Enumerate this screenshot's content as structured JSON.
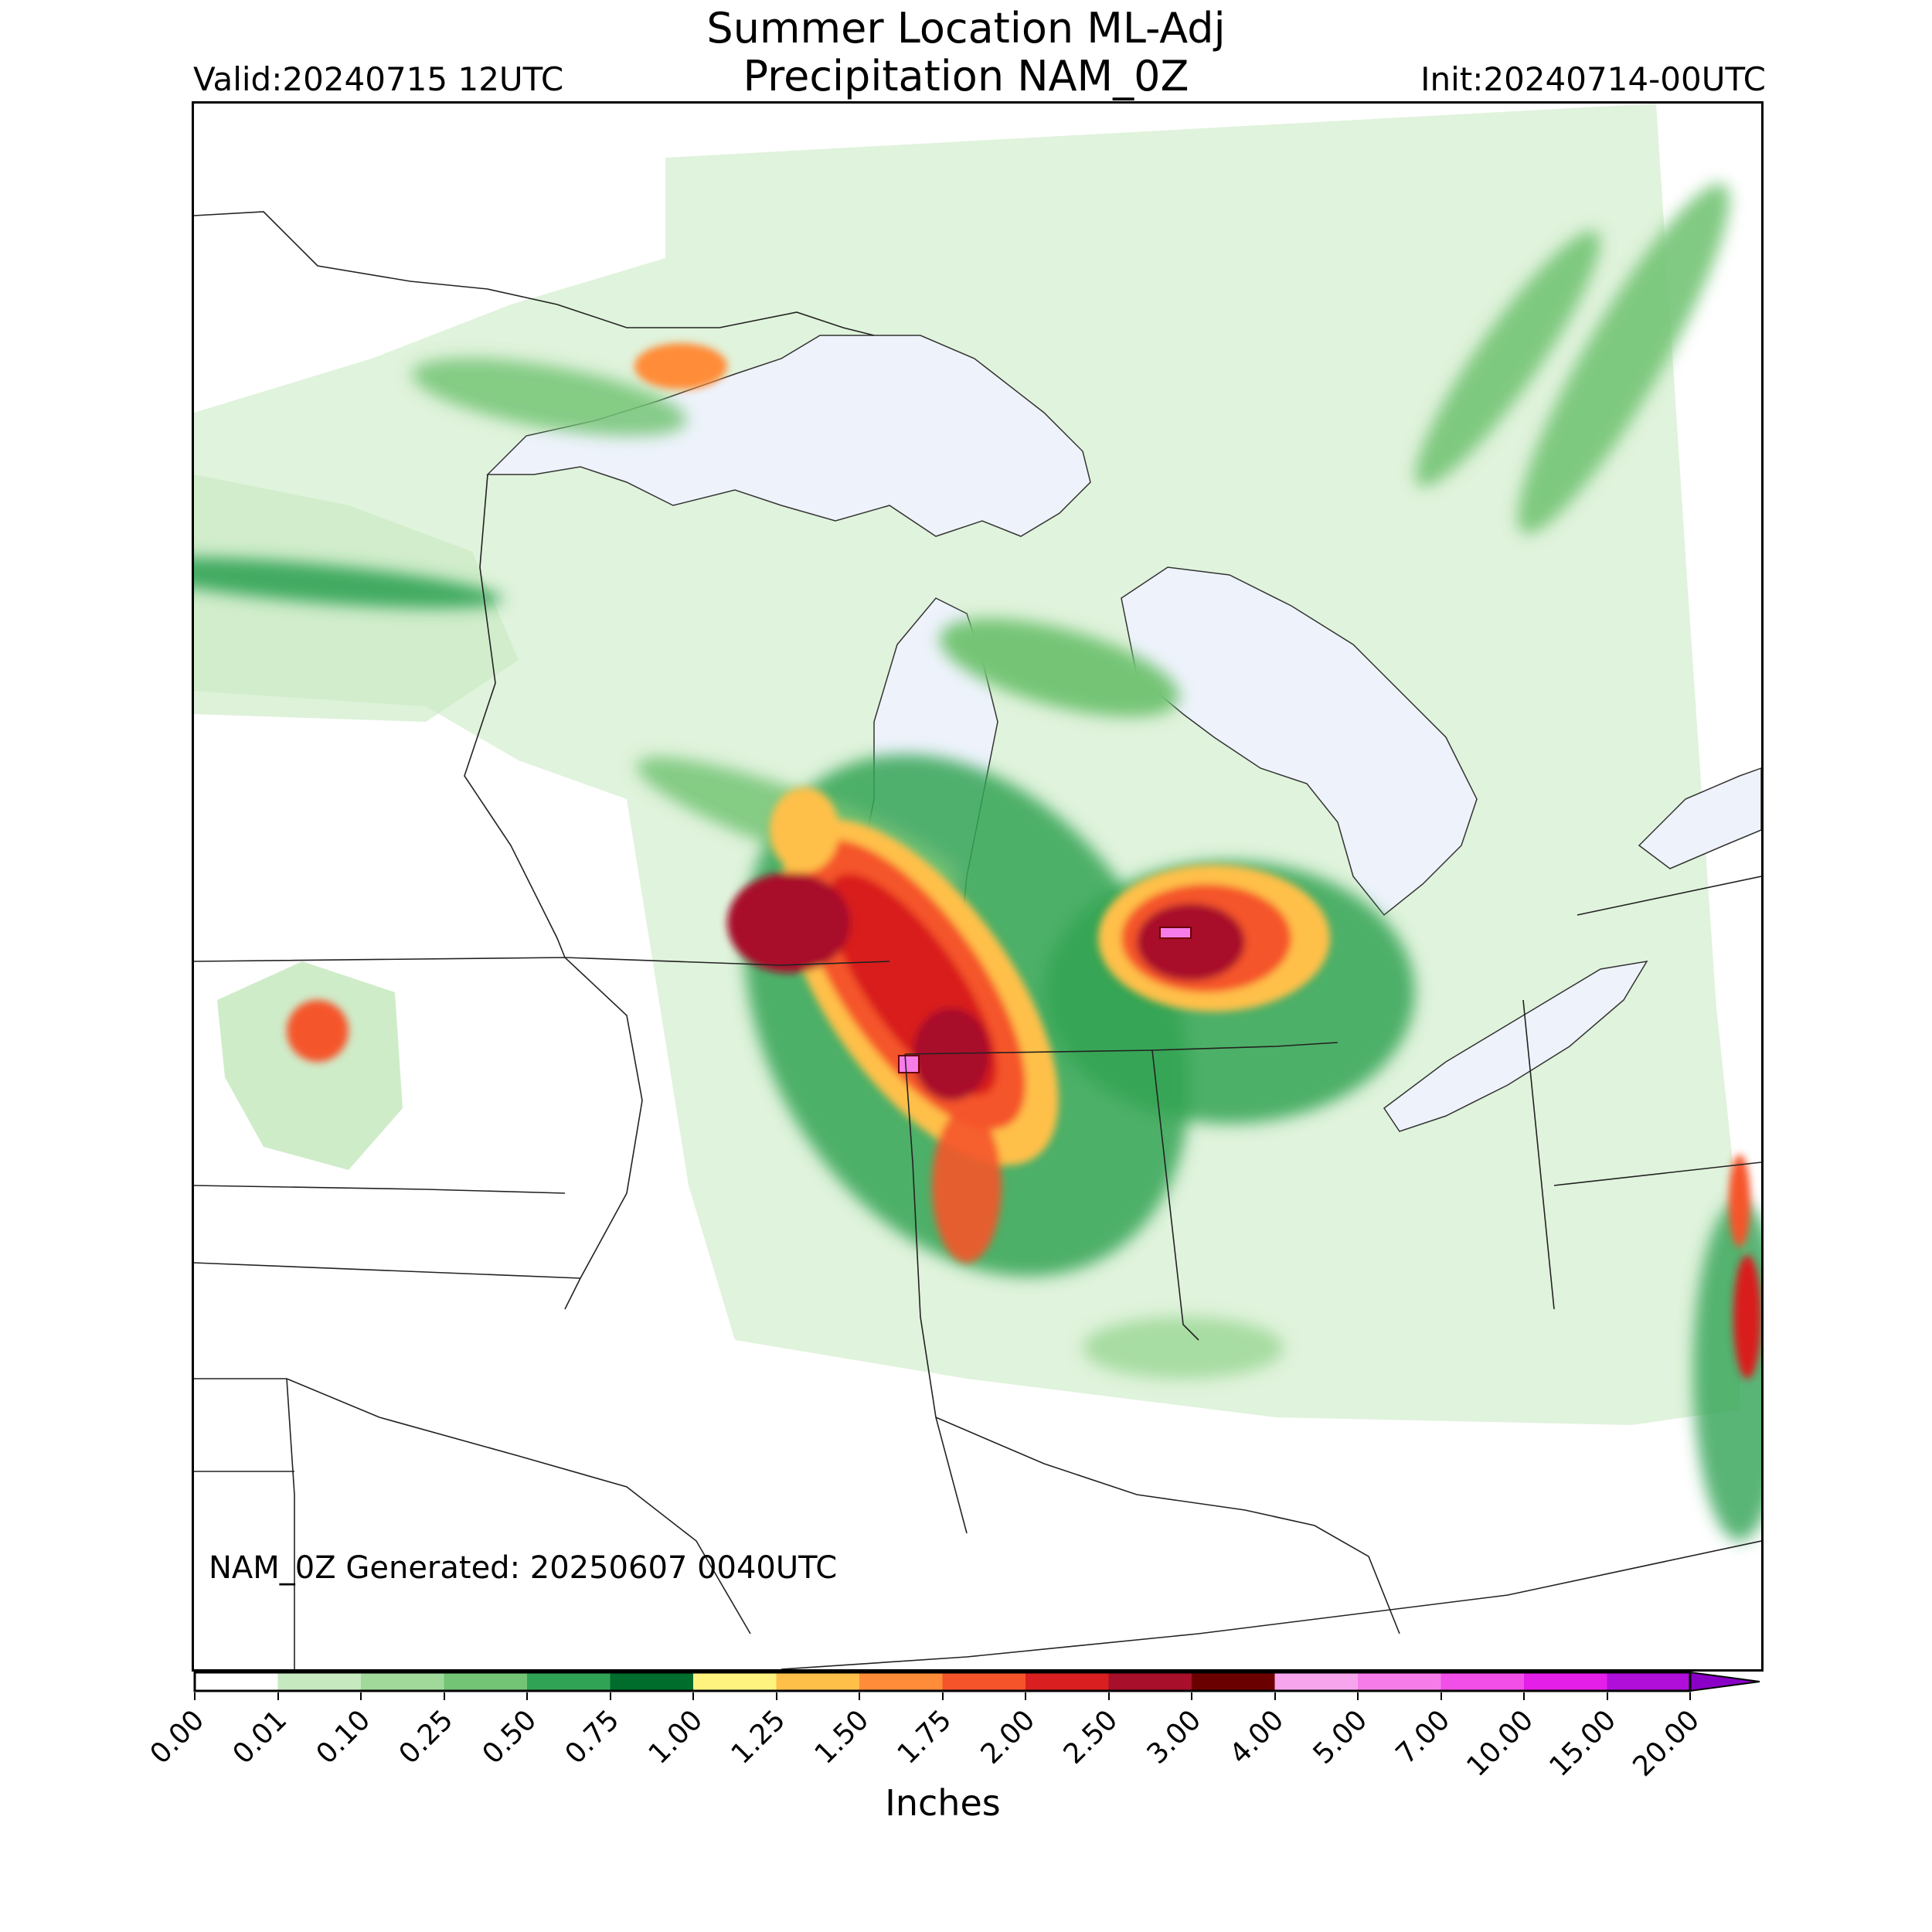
{
  "header": {
    "title_line1": "Summer Location ML-Adj",
    "title_line2": "Precipitation NAM_0Z",
    "valid": "Valid:20240715 12UTC",
    "init": "Init:20240714-00UTC"
  },
  "footer": {
    "generated": "NAM_0Z Generated: 20250607 0040UTC"
  },
  "colorbar": {
    "units": "Inches",
    "ticks": [
      "0.00",
      "0.01",
      "0.10",
      "0.25",
      "0.50",
      "0.75",
      "1.00",
      "1.25",
      "1.50",
      "1.75",
      "2.00",
      "2.50",
      "3.00",
      "4.00",
      "5.00",
      "7.00",
      "10.00",
      "15.00",
      "20.00"
    ],
    "colors": [
      "#ffffff",
      "#c7e9c0",
      "#a1d99b",
      "#74c476",
      "#31a354",
      "#006d2c",
      "#fff380",
      "#ffc04a",
      "#ff8c39",
      "#f5542a",
      "#d91f1f",
      "#a80f2a",
      "#6b0000",
      "#f7a6ee",
      "#f67de9",
      "#f24ee8",
      "#e31fe8",
      "#b00fd9",
      "#8a00c7"
    ],
    "extend": "max"
  },
  "map": {
    "colors": {
      "lake": "#eef3fb",
      "border": "#222222",
      "light": "#c7e9c0",
      "mid": "#74c476",
      "dark": "#31a354",
      "darker": "#006d2c",
      "yellow": "#fff380",
      "orange": "#ff8c39",
      "red": "#d91f1f",
      "maroon": "#a80f2a",
      "pink": "#f67de9"
    }
  }
}
